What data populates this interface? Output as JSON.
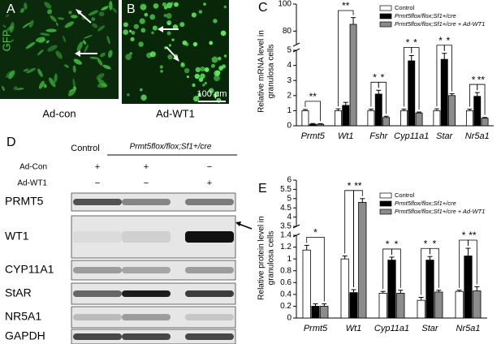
{
  "panels": {
    "A": {
      "label": "A",
      "marker": "GFP",
      "caption": "Ad-con"
    },
    "B": {
      "label": "B",
      "scale_bar": "100 μm",
      "caption": "Ad-WT1"
    },
    "D": {
      "label": "D",
      "columns": [
        "Control",
        "Prmt5flox/flox;Sf1+/cre"
      ],
      "rows": [
        {
          "name": "Ad-Con",
          "signs": [
            "+",
            "+",
            "−"
          ]
        },
        {
          "name": "Ad-WT1",
          "signs": [
            "−",
            "−",
            "+"
          ]
        }
      ],
      "blots": [
        "PRMT5",
        "WT1",
        "CYP11A1",
        "StAR",
        "NR5A1",
        "GAPDH"
      ]
    }
  },
  "chart_data": [
    {
      "type": "bar",
      "panel_label": "C",
      "ylabel": [
        "Relative mRNA level in",
        "granulosa cells"
      ],
      "categories": [
        "Prmt5",
        "Wt1",
        "Fshr",
        "Cyp11a1",
        "Star",
        "Nr5a1"
      ],
      "y_segments": [
        {
          "ylim": [
            0,
            5
          ],
          "yticks": [
            0,
            1,
            2,
            3,
            4,
            5
          ]
        },
        {
          "ylim": [
            70,
            100
          ],
          "yticks": [
            80,
            100
          ]
        }
      ],
      "series": [
        {
          "name": "Control",
          "color": "#ffffff",
          "values": [
            1.0,
            1.0,
            1.0,
            1.0,
            1.0,
            1.0
          ],
          "errors": [
            0.08,
            0.12,
            0.1,
            0.1,
            0.12,
            0.1
          ]
        },
        {
          "name": "Prmt5flox/flox;Sf1+/cre",
          "color": "#000000",
          "values": [
            0.1,
            1.35,
            2.1,
            4.3,
            4.4,
            1.95
          ],
          "errors": [
            0.05,
            0.2,
            0.25,
            0.35,
            0.4,
            0.25
          ]
        },
        {
          "name": "Prmt5flox/flox;Sf1+/cre + Ad-WT1",
          "color": "#8c8c8c",
          "values": [
            0.1,
            85,
            0.55,
            0.85,
            2.0,
            0.5
          ],
          "errors": [
            0.04,
            5,
            0.08,
            0.06,
            0.12,
            0.05
          ]
        }
      ],
      "significance": [
        [
          "**"
        ],
        [
          "**"
        ],
        [
          "*",
          "*"
        ],
        [
          "*",
          "*"
        ],
        [
          "*",
          "*"
        ],
        [
          "*",
          "**"
        ]
      ]
    },
    {
      "type": "bar",
      "panel_label": "E",
      "ylabel": [
        "Relative protein level in",
        "granulosa cells"
      ],
      "categories": [
        "Prmt5",
        "Wt1",
        "Cyp11a1",
        "Star",
        "Nr5a1"
      ],
      "y_segments": [
        {
          "ylim": [
            0,
            1.4
          ],
          "yticks": [
            0,
            0.2,
            0.4,
            0.6,
            0.8,
            1.0,
            1.2,
            1.4
          ]
        },
        {
          "ylim": [
            3.5,
            6.0
          ],
          "yticks": [
            3.5,
            4.0,
            4.5,
            5.0,
            5.5,
            6.0
          ]
        }
      ],
      "series": [
        {
          "name": "Control",
          "color": "#ffffff",
          "values": [
            1.15,
            1.0,
            0.42,
            0.3,
            0.45
          ],
          "errors": [
            0.08,
            0.05,
            0.03,
            0.05,
            0.02
          ]
        },
        {
          "name": "Prmt5flox/flox;Sf1+/cre",
          "color": "#000000",
          "values": [
            0.2,
            0.43,
            0.98,
            0.98,
            1.05
          ],
          "errors": [
            0.04,
            0.05,
            0.05,
            0.06,
            0.13
          ]
        },
        {
          "name": "Prmt5flox/flox;Sf1+/cre + Ad-WT1",
          "color": "#8c8c8c",
          "values": [
            0.2,
            4.8,
            0.42,
            0.44,
            0.46
          ],
          "errors": [
            0.04,
            0.2,
            0.05,
            0.03,
            0.07
          ]
        }
      ],
      "significance": [
        [
          "*"
        ],
        [
          "*",
          "**"
        ],
        [
          "*",
          "*"
        ],
        [
          "*",
          "*"
        ],
        [
          "*",
          "**"
        ]
      ]
    }
  ]
}
